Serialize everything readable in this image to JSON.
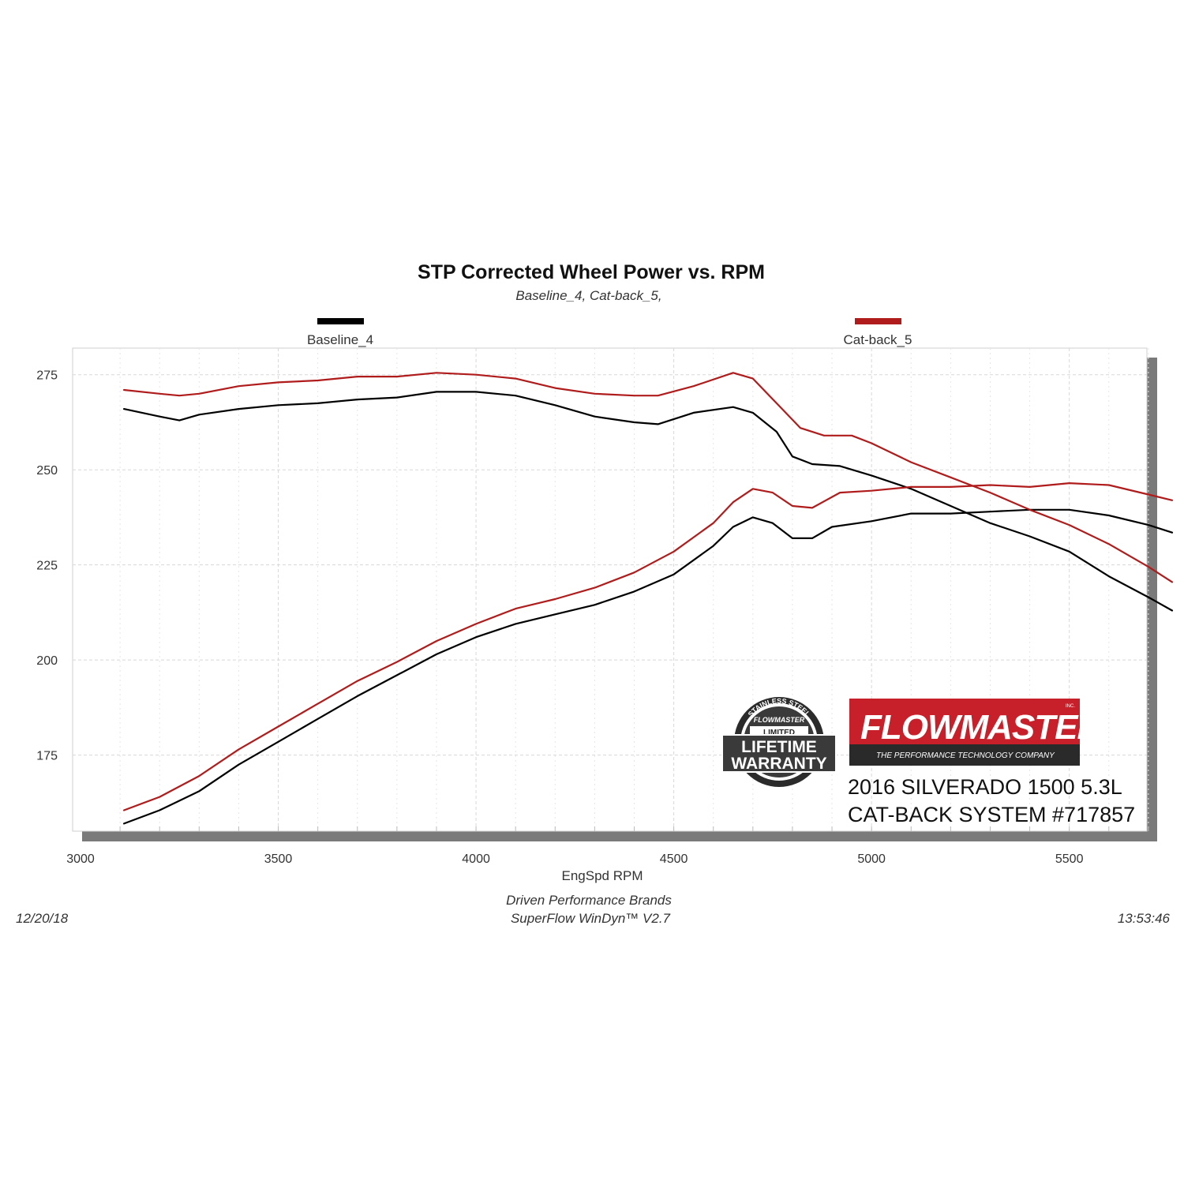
{
  "chart_data": {
    "type": "line",
    "title": "STP Corrected Wheel Power vs. RPM",
    "subtitle": "Baseline_4, Cat-back_5,",
    "xlabel": "EngSpd  RPM",
    "ylabel": "",
    "xlim": [
      3000,
      5800
    ],
    "ylim": [
      155,
      282
    ],
    "x_ticks": [
      3000,
      3500,
      4000,
      4500,
      5000,
      5500
    ],
    "y_ticks": [
      175,
      200,
      225,
      250,
      275
    ],
    "grid": true,
    "legend_position": "top",
    "series": [
      {
        "name": "Baseline_4",
        "color": "#000000",
        "curves": [
          {
            "label": "upper",
            "points": [
              [
                3110,
                266
              ],
              [
                3200,
                264
              ],
              [
                3250,
                263
              ],
              [
                3300,
                264.5
              ],
              [
                3400,
                266
              ],
              [
                3500,
                267
              ],
              [
                3600,
                267.5
              ],
              [
                3700,
                268.5
              ],
              [
                3800,
                269
              ],
              [
                3900,
                270.5
              ],
              [
                4000,
                270.5
              ],
              [
                4100,
                269.5
              ],
              [
                4200,
                267
              ],
              [
                4300,
                264
              ],
              [
                4400,
                262.5
              ],
              [
                4460,
                262
              ],
              [
                4550,
                265
              ],
              [
                4650,
                266.5
              ],
              [
                4700,
                265
              ],
              [
                4760,
                260
              ],
              [
                4800,
                253.5
              ],
              [
                4850,
                251.5
              ],
              [
                4920,
                251
              ],
              [
                5000,
                248.5
              ],
              [
                5100,
                245
              ],
              [
                5200,
                240.5
              ],
              [
                5300,
                236
              ],
              [
                5400,
                232.5
              ],
              [
                5500,
                228.5
              ],
              [
                5600,
                222
              ],
              [
                5700,
                216.5
              ],
              [
                5760,
                213
              ]
            ]
          },
          {
            "label": "lower",
            "points": [
              [
                3110,
                157
              ],
              [
                3200,
                160.5
              ],
              [
                3300,
                165.5
              ],
              [
                3400,
                172.5
              ],
              [
                3500,
                178.5
              ],
              [
                3600,
                184.5
              ],
              [
                3700,
                190.5
              ],
              [
                3800,
                196
              ],
              [
                3900,
                201.5
              ],
              [
                4000,
                206
              ],
              [
                4100,
                209.5
              ],
              [
                4200,
                212
              ],
              [
                4300,
                214.5
              ],
              [
                4400,
                218
              ],
              [
                4500,
                222.5
              ],
              [
                4600,
                230
              ],
              [
                4650,
                235
              ],
              [
                4700,
                237.5
              ],
              [
                4750,
                236
              ],
              [
                4800,
                232
              ],
              [
                4850,
                232
              ],
              [
                4900,
                235
              ],
              [
                5000,
                236.5
              ],
              [
                5100,
                238.5
              ],
              [
                5200,
                238.5
              ],
              [
                5300,
                239
              ],
              [
                5400,
                239.5
              ],
              [
                5500,
                239.5
              ],
              [
                5600,
                238
              ],
              [
                5700,
                235.5
              ],
              [
                5760,
                233.5
              ]
            ]
          }
        ]
      },
      {
        "name": "Cat-back_5",
        "color": "#b01c1c",
        "curves": [
          {
            "label": "upper",
            "points": [
              [
                3110,
                271
              ],
              [
                3200,
                270
              ],
              [
                3250,
                269.5
              ],
              [
                3300,
                270
              ],
              [
                3400,
                272
              ],
              [
                3500,
                273
              ],
              [
                3600,
                273.5
              ],
              [
                3700,
                274.5
              ],
              [
                3800,
                274.5
              ],
              [
                3900,
                275.5
              ],
              [
                4000,
                275
              ],
              [
                4100,
                274
              ],
              [
                4200,
                271.5
              ],
              [
                4300,
                270
              ],
              [
                4400,
                269.5
              ],
              [
                4460,
                269.5
              ],
              [
                4550,
                272
              ],
              [
                4650,
                275.5
              ],
              [
                4700,
                274
              ],
              [
                4760,
                267.5
              ],
              [
                4820,
                261
              ],
              [
                4880,
                259
              ],
              [
                4950,
                259
              ],
              [
                5000,
                257
              ],
              [
                5100,
                252
              ],
              [
                5200,
                248
              ],
              [
                5300,
                244
              ],
              [
                5400,
                239.5
              ],
              [
                5500,
                235.5
              ],
              [
                5600,
                230.5
              ],
              [
                5700,
                224.5
              ],
              [
                5760,
                220.5
              ]
            ]
          },
          {
            "label": "lower",
            "points": [
              [
                3110,
                160.5
              ],
              [
                3200,
                164
              ],
              [
                3300,
                169.5
              ],
              [
                3400,
                176.5
              ],
              [
                3500,
                182.5
              ],
              [
                3600,
                188.5
              ],
              [
                3700,
                194.5
              ],
              [
                3800,
                199.5
              ],
              [
                3900,
                205
              ],
              [
                4000,
                209.5
              ],
              [
                4100,
                213.5
              ],
              [
                4200,
                216
              ],
              [
                4300,
                219
              ],
              [
                4400,
                223
              ],
              [
                4500,
                228.5
              ],
              [
                4600,
                236
              ],
              [
                4650,
                241.5
              ],
              [
                4700,
                245
              ],
              [
                4750,
                244
              ],
              [
                4800,
                240.5
              ],
              [
                4850,
                240
              ],
              [
                4920,
                244
              ],
              [
                5000,
                244.5
              ],
              [
                5100,
                245.5
              ],
              [
                5200,
                245.5
              ],
              [
                5300,
                246
              ],
              [
                5400,
                245.5
              ],
              [
                5500,
                246.5
              ],
              [
                5600,
                246
              ],
              [
                5700,
                243.5
              ],
              [
                5760,
                242
              ]
            ]
          }
        ]
      }
    ]
  },
  "footer": {
    "date": "12/20/18",
    "time": "13:53:46",
    "company": "Driven Performance Brands",
    "software": "SuperFlow WinDyn™  V2.7"
  },
  "branding": {
    "logo_text": "FLOWMASTER",
    "logo_inc": "INC.",
    "logo_tagline": "THE PERFORMANCE TECHNOLOGY COMPANY",
    "logo_color": "#c8202a",
    "badge": {
      "arc_text": "STAINLESS STEEL",
      "brand": "FLOWMASTER",
      "limited": "LIMITED",
      "line1": "LIFETIME",
      "line2": "WARRANTY"
    },
    "vehicle_line1": "2016 SILVERADO 1500 5.3L",
    "vehicle_line2": "CAT-BACK SYSTEM #717857"
  }
}
